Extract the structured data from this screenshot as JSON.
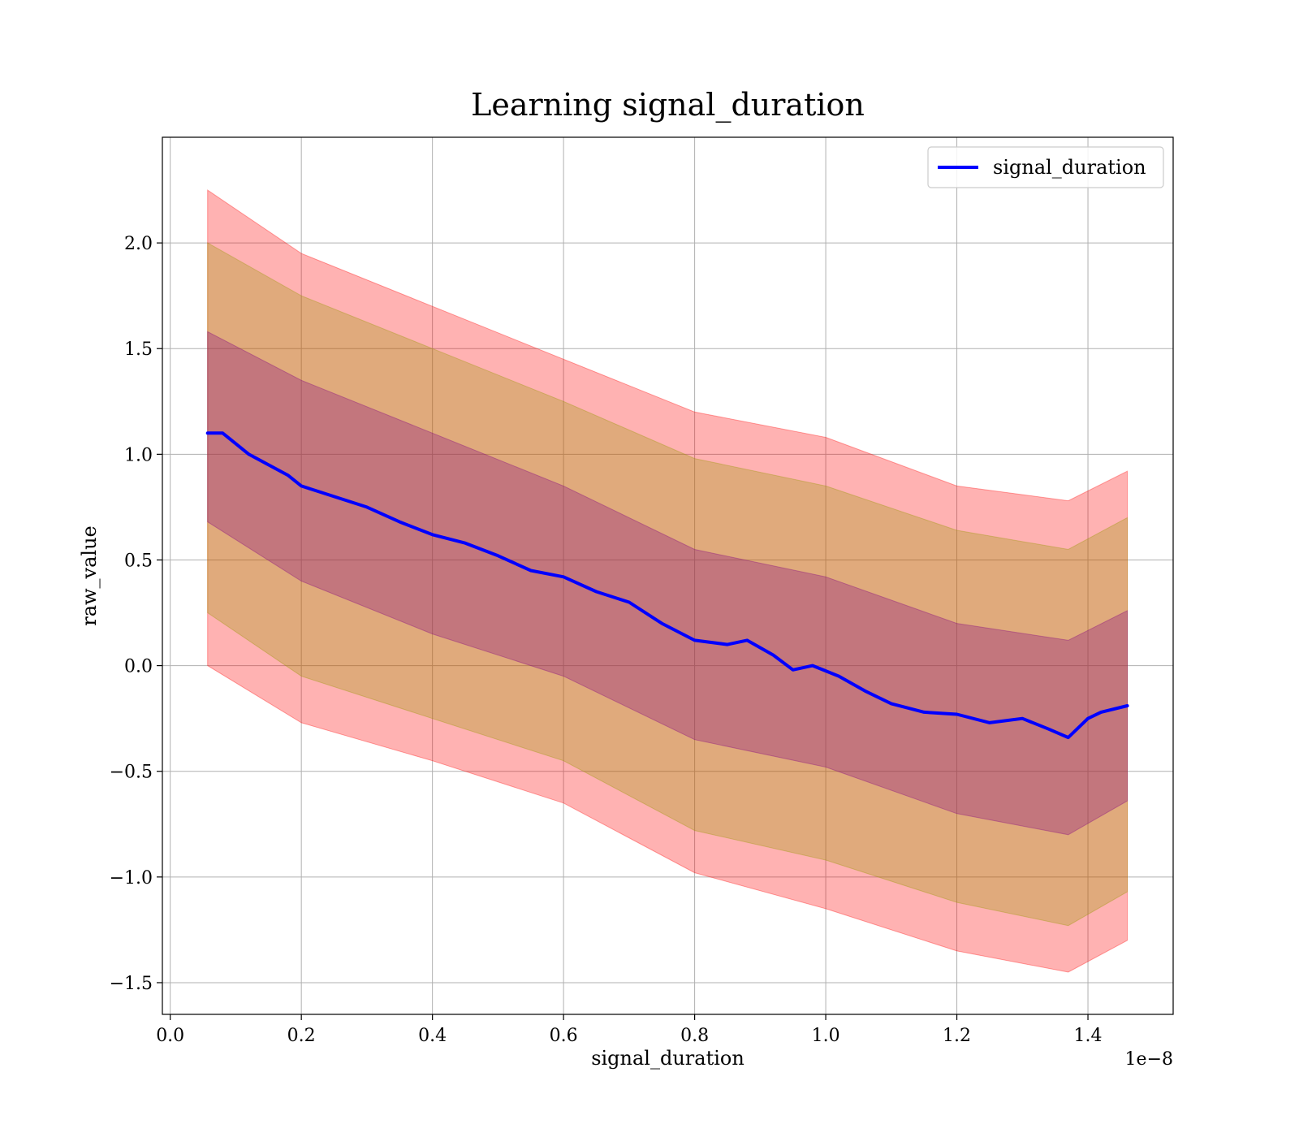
{
  "chart_data": {
    "type": "line",
    "title": "Learning signal_duration",
    "xlabel": "signal_duration",
    "ylabel": "raw_value",
    "x_offset_text": "1e−8",
    "xlim": [
      -0.012,
      1.53
    ],
    "ylim": [
      -1.65,
      2.5
    ],
    "grid": true,
    "legend_position": "top-right",
    "x_ticks": [
      0.0,
      0.2,
      0.4,
      0.6,
      0.8,
      1.0,
      1.2,
      1.4
    ],
    "x_tick_labels": [
      "0.0",
      "0.2",
      "0.4",
      "0.6",
      "0.8",
      "1.0",
      "1.2",
      "1.4"
    ],
    "y_ticks": [
      -1.5,
      -1.0,
      -0.5,
      0.0,
      0.5,
      1.0,
      1.5,
      2.0
    ],
    "y_tick_labels": [
      "−1.5",
      "−1.0",
      "−0.5",
      "0.0",
      "0.5",
      "1.0",
      "1.5",
      "2.0"
    ],
    "series": [
      {
        "name": "signal_duration",
        "color": "#0000ff",
        "x": [
          0.057,
          0.08,
          0.1,
          0.12,
          0.15,
          0.18,
          0.2,
          0.25,
          0.3,
          0.35,
          0.4,
          0.45,
          0.5,
          0.55,
          0.6,
          0.65,
          0.7,
          0.75,
          0.8,
          0.85,
          0.88,
          0.92,
          0.95,
          0.98,
          1.02,
          1.06,
          1.1,
          1.15,
          1.2,
          1.25,
          1.3,
          1.34,
          1.37,
          1.4,
          1.42,
          1.46
        ],
        "y": [
          1.1,
          1.1,
          1.05,
          1.0,
          0.95,
          0.9,
          0.85,
          0.8,
          0.75,
          0.68,
          0.62,
          0.58,
          0.52,
          0.45,
          0.42,
          0.35,
          0.3,
          0.2,
          0.12,
          0.1,
          0.12,
          0.05,
          -0.02,
          0.0,
          -0.05,
          -0.12,
          -0.18,
          -0.22,
          -0.23,
          -0.27,
          -0.25,
          -0.3,
          -0.34,
          -0.25,
          -0.22,
          -0.19
        ]
      }
    ],
    "bands": [
      {
        "name": "outer-band",
        "color": "#ff0000",
        "opacity": 0.3,
        "x": [
          0.057,
          0.2,
          0.4,
          0.6,
          0.8,
          1.0,
          1.2,
          1.37,
          1.46
        ],
        "upper": [
          2.25,
          1.95,
          1.7,
          1.45,
          1.2,
          1.08,
          0.85,
          0.78,
          0.92
        ],
        "lower": [
          0.0,
          -0.27,
          -0.45,
          -0.65,
          -0.98,
          -1.15,
          -1.35,
          -1.45,
          -1.3
        ]
      },
      {
        "name": "middle-band",
        "color": "#999900",
        "opacity": 0.3,
        "x": [
          0.057,
          0.2,
          0.4,
          0.6,
          0.8,
          1.0,
          1.2,
          1.37,
          1.46
        ],
        "upper": [
          2.0,
          1.75,
          1.5,
          1.25,
          0.98,
          0.85,
          0.64,
          0.55,
          0.7
        ],
        "lower": [
          0.25,
          -0.05,
          -0.25,
          -0.45,
          -0.78,
          -0.92,
          -1.12,
          -1.23,
          -1.07
        ]
      },
      {
        "name": "inner-band",
        "color": "#800080",
        "opacity": 0.3,
        "x": [
          0.057,
          0.2,
          0.4,
          0.6,
          0.8,
          1.0,
          1.2,
          1.37,
          1.46
        ],
        "upper": [
          1.58,
          1.35,
          1.1,
          0.85,
          0.55,
          0.42,
          0.2,
          0.12,
          0.26
        ],
        "lower": [
          0.68,
          0.4,
          0.15,
          -0.05,
          -0.35,
          -0.48,
          -0.7,
          -0.8,
          -0.64
        ]
      }
    ]
  }
}
